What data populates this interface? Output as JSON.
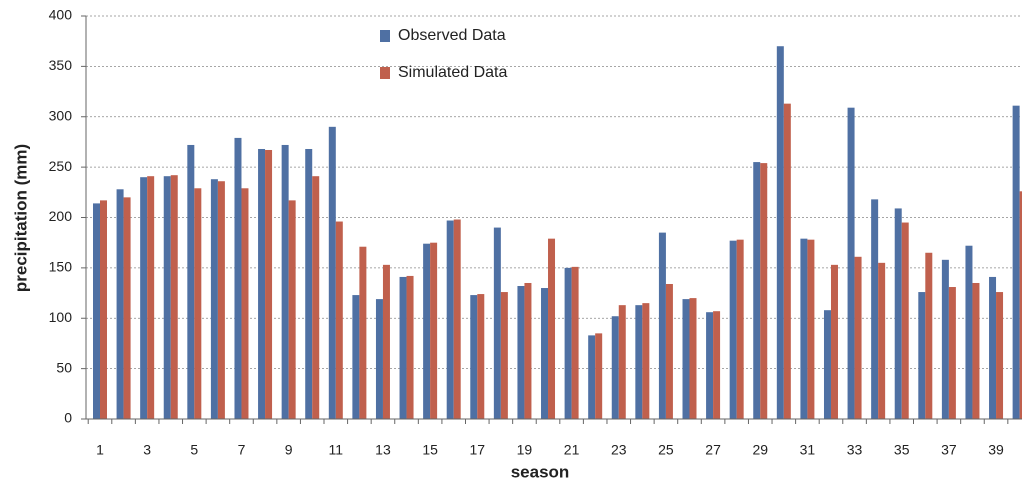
{
  "chart_data": {
    "type": "bar",
    "x_label": "season",
    "y_label": "precipitation (mm)",
    "categories": [
      1,
      null,
      3,
      null,
      5,
      null,
      7,
      null,
      9,
      null,
      11,
      null,
      13,
      null,
      15,
      null,
      17,
      null,
      19,
      null,
      21,
      null,
      23,
      null,
      25,
      null,
      27,
      null,
      29,
      null,
      31,
      null,
      33,
      null,
      35,
      null,
      37,
      null,
      39,
      null
    ],
    "series": [
      {
        "name": "Observed Data",
        "color": "#4f70a3",
        "values": [
          214,
          228,
          240,
          241,
          272,
          238,
          279,
          268,
          272,
          268,
          290,
          123,
          119,
          141,
          174,
          197,
          123,
          190,
          132,
          130,
          150,
          83,
          102,
          113,
          185,
          119,
          106,
          177,
          255,
          370,
          179,
          108,
          309,
          218,
          209,
          126,
          158,
          172,
          141,
          311
        ]
      },
      {
        "name": "Simulated Data",
        "color": "#c0604d",
        "values": [
          217,
          220,
          241,
          242,
          229,
          236,
          229,
          267,
          217,
          241,
          196,
          171,
          153,
          142,
          175,
          198,
          124,
          126,
          135,
          179,
          151,
          85,
          113,
          115,
          134,
          120,
          107,
          178,
          254,
          313,
          178,
          153,
          161,
          155,
          195,
          165,
          131,
          135,
          126,
          226
        ]
      }
    ],
    "ylim": [
      0,
      400
    ],
    "yticks": [
      0,
      50,
      100,
      150,
      200,
      250,
      300,
      350,
      400
    ],
    "grid": true,
    "legend": "top"
  }
}
